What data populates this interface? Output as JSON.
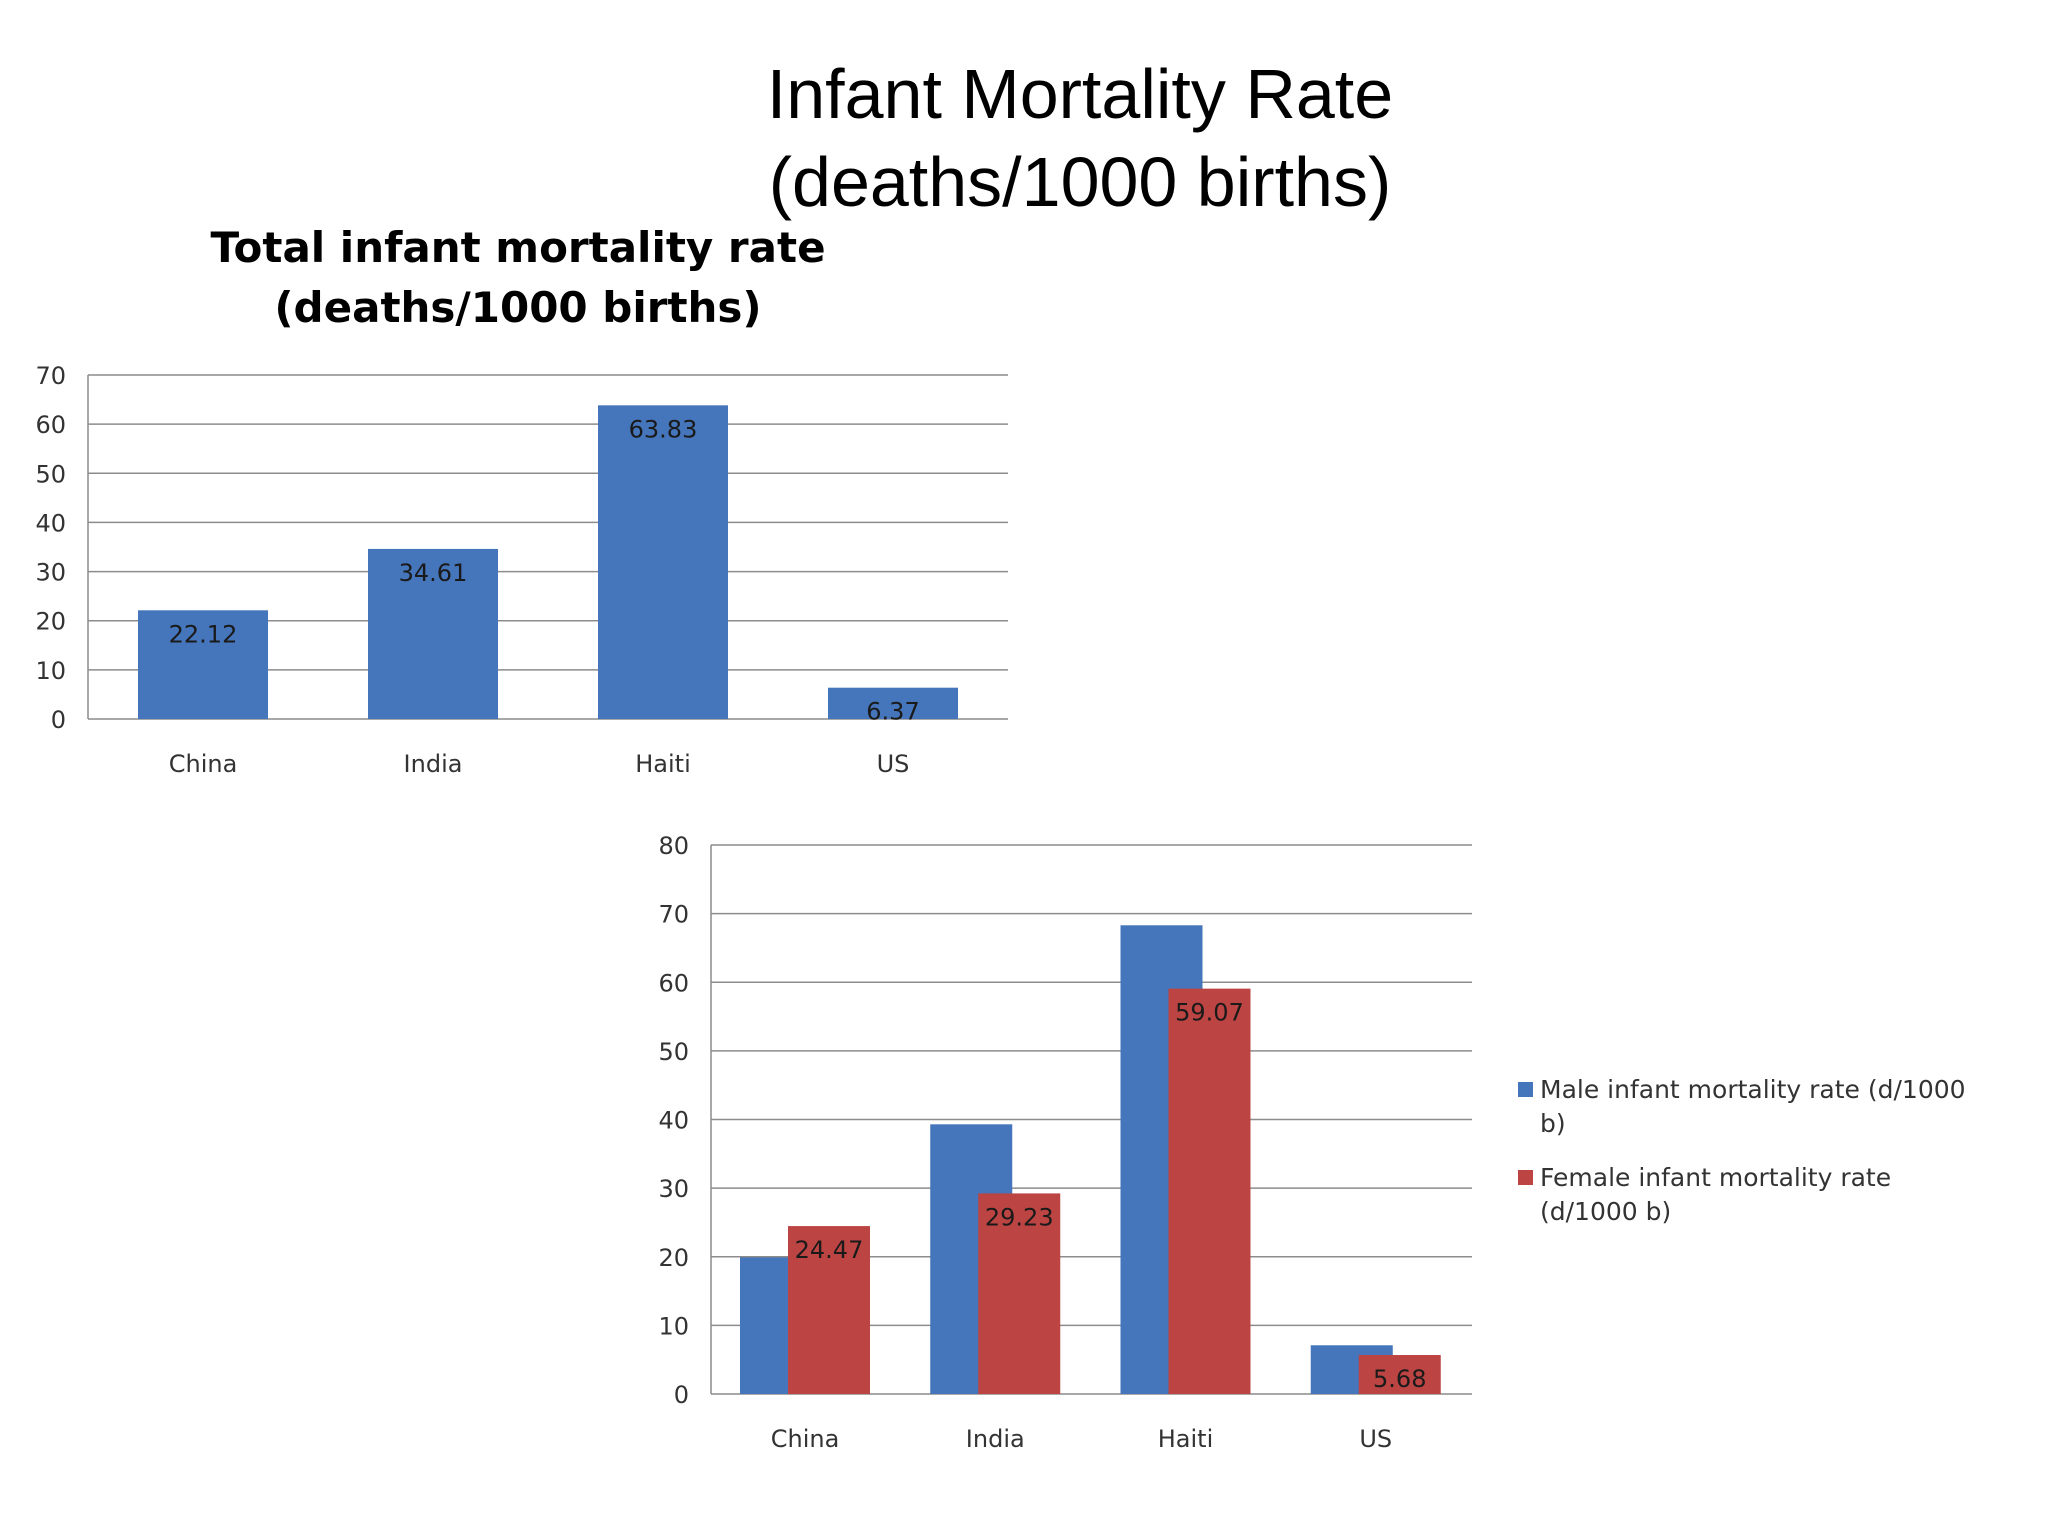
{
  "slide": {
    "title_line1": "Infant Mortality Rate",
    "title_line2": "(deaths/1000 births)"
  },
  "colors": {
    "blue": "#4575BA",
    "red": "#BC4442",
    "grid": "#8C8C8C"
  },
  "chart_data": [
    {
      "type": "bar",
      "title_lines": [
        "Total infant mortality rate",
        "(deaths/1000 births)"
      ],
      "categories": [
        "China",
        "India",
        "Haiti",
        "US"
      ],
      "series": [
        {
          "values": [
            22.12,
            34.61,
            63.83,
            6.37
          ],
          "labels": [
            "22.12",
            "34.61",
            "63.83",
            "6.37"
          ]
        }
      ],
      "ylim": [
        0,
        70
      ],
      "yticks": [
        0,
        10,
        20,
        30,
        40,
        50,
        60,
        70
      ],
      "grid": true,
      "legend": "none"
    },
    {
      "type": "bar",
      "categories": [
        "China",
        "India",
        "Haiti",
        "US"
      ],
      "series": [
        {
          "name": "Male infant mortality rate (d/1000 b)",
          "legend_lines": [
            "Male infant mortality rate (d/1000",
            "b)"
          ],
          "values": [
            19.9,
            39.3,
            68.3,
            7.1
          ]
        },
        {
          "name": "Female infant mortality rate (d/1000 b)",
          "legend_lines": [
            "Female infant mortality rate",
            "(d/1000 b)"
          ],
          "values": [
            24.47,
            29.23,
            59.07,
            5.68
          ],
          "labels": [
            "24.47",
            "29.23",
            "59.07",
            "5.68"
          ]
        }
      ],
      "ylim": [
        0,
        80
      ],
      "yticks": [
        0,
        10,
        20,
        30,
        40,
        50,
        60,
        70,
        80
      ],
      "grid": true,
      "legend": "right"
    }
  ]
}
